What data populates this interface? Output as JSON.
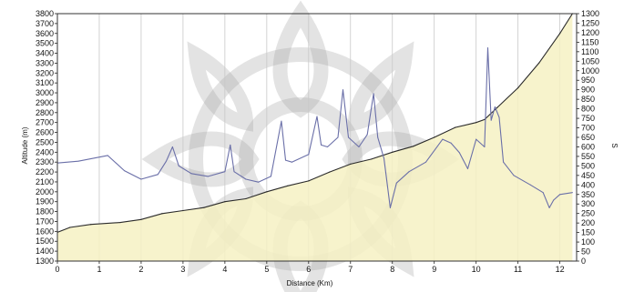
{
  "chart_data": {
    "type": "area",
    "title": "",
    "xlabel": "Distance (Km)",
    "ylabel": "Altitude (m)",
    "y2label": "S",
    "xlim": [
      0,
      12.4
    ],
    "ylim": [
      1300,
      3800
    ],
    "y2lim": [
      0,
      1300
    ],
    "x_ticks": [
      "0",
      "1",
      "2",
      "3",
      "4",
      "5",
      "6",
      "7",
      "8",
      "9",
      "10",
      "11",
      "12"
    ],
    "y_ticks": [
      "1300",
      "1400",
      "1500",
      "1600",
      "1700",
      "1800",
      "1900",
      "2000",
      "2100",
      "2200",
      "2300",
      "2400",
      "2500",
      "2600",
      "2700",
      "2800",
      "2900",
      "3000",
      "3100",
      "3200",
      "3300",
      "3400",
      "3500",
      "3600",
      "3700",
      "3800"
    ],
    "y2_ticks": [
      "0",
      "50",
      "100",
      "150",
      "200",
      "250",
      "300",
      "350",
      "400",
      "450",
      "500",
      "550",
      "600",
      "650",
      "700",
      "750",
      "800",
      "850",
      "900",
      "950",
      "1000",
      "1050",
      "1100",
      "1150",
      "1200",
      "1250",
      "1300"
    ],
    "grid": "vertical",
    "colors": {
      "altitude_fill": "#f6f1c3",
      "altitude_line": "#2a2a2a",
      "s_line": "#6a6fa8"
    },
    "series": [
      {
        "axis": "left",
        "x": [
          0,
          0.3,
          0.8,
          1.5,
          2.0,
          2.5,
          3.0,
          3.5,
          4.0,
          4.5,
          5.0,
          5.5,
          6.0,
          6.5,
          7.0,
          7.5,
          8.0,
          8.5,
          9.0,
          9.5,
          10.0,
          10.2,
          10.5,
          11.0,
          11.5,
          12.0,
          12.3
        ],
        "values": [
          1590,
          1640,
          1670,
          1690,
          1720,
          1780,
          1810,
          1840,
          1900,
          1930,
          2000,
          2060,
          2110,
          2200,
          2280,
          2330,
          2400,
          2460,
          2550,
          2650,
          2700,
          2730,
          2850,
          3050,
          3300,
          3600,
          3800
        ]
      },
      {
        "axis": "right",
        "x": [
          0,
          0.5,
          1.2,
          1.6,
          2.0,
          2.4,
          2.6,
          2.75,
          2.9,
          3.2,
          3.6,
          4.0,
          4.13,
          4.22,
          4.5,
          4.8,
          5.1,
          5.35,
          5.45,
          5.6,
          6.0,
          6.2,
          6.3,
          6.45,
          6.7,
          6.82,
          6.95,
          7.2,
          7.4,
          7.55,
          7.65,
          7.8,
          7.95,
          8.1,
          8.4,
          8.8,
          9.2,
          9.4,
          9.6,
          9.8,
          10.0,
          10.2,
          10.28,
          10.36,
          10.45,
          10.55,
          10.65,
          10.9,
          11.3,
          11.6,
          11.75,
          11.85,
          12.0,
          12.3
        ],
        "values": [
          515,
          525,
          555,
          475,
          430,
          455,
          525,
          600,
          500,
          460,
          445,
          470,
          610,
          470,
          430,
          415,
          445,
          735,
          530,
          520,
          560,
          760,
          610,
          600,
          650,
          900,
          650,
          600,
          665,
          880,
          650,
          540,
          280,
          410,
          470,
          520,
          640,
          620,
          570,
          485,
          640,
          600,
          1120,
          740,
          810,
          755,
          520,
          450,
          400,
          360,
          280,
          320,
          350,
          360
        ]
      }
    ]
  }
}
